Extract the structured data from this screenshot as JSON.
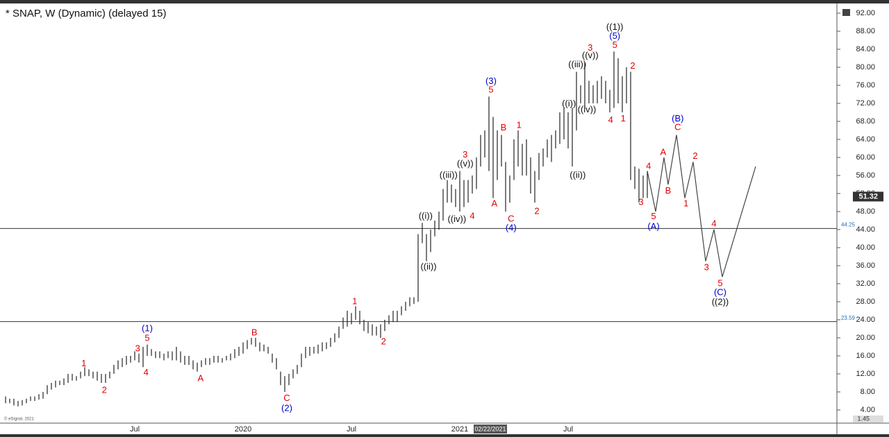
{
  "chart_data": {
    "type": "ohlc",
    "title": "* SNAP, W (Dynamic) (delayed 15)",
    "copyright": "© eSignal, 2021",
    "cursor_label": "02/22/2021",
    "bar_color": "#222222",
    "categories": [
      null,
      null,
      null,
      null,
      null,
      null,
      null,
      null,
      null,
      null,
      null,
      null,
      null,
      null,
      null,
      null,
      null,
      null,
      null,
      null,
      null,
      null,
      null,
      null,
      null,
      null,
      null,
      null,
      null,
      null,
      null,
      "Jul",
      null,
      null,
      null,
      null,
      null,
      null,
      null,
      null,
      null,
      null,
      null,
      null,
      null,
      null,
      null,
      null,
      null,
      null,
      null,
      null,
      null,
      null,
      null,
      null,
      null,
      "2020",
      null,
      null,
      null,
      null,
      null,
      null,
      null,
      null,
      null,
      null,
      null,
      null,
      null,
      null,
      null,
      null,
      null,
      null,
      null,
      null,
      null,
      null,
      null,
      null,
      null,
      "Jul",
      null,
      null,
      null,
      null,
      null,
      null,
      null,
      null,
      null,
      null,
      null,
      null,
      null,
      null,
      null,
      null,
      null,
      null,
      null,
      null,
      null,
      null,
      null,
      null,
      null,
      "2021",
      null,
      null,
      null,
      null,
      null,
      null,
      null,
      null,
      null,
      null,
      null,
      null,
      null,
      null,
      null,
      null,
      null,
      null,
      null,
      null,
      null,
      null,
      null,
      null,
      null,
      "Jul",
      null,
      null,
      null,
      null,
      null,
      null,
      null,
      null,
      null,
      null,
      null,
      null,
      null,
      null,
      null,
      null,
      null,
      null,
      null
    ],
    "high": [
      7,
      6.5,
      6.5,
      6,
      6.2,
      6.5,
      7,
      7,
      7.5,
      8,
      9.5,
      10,
      10.5,
      10.5,
      11,
      12,
      12,
      11.5,
      12.5,
      13.5,
      13,
      12.5,
      12.5,
      12,
      12,
      12.5,
      14,
      15,
      15.5,
      16,
      16,
      17,
      16.5,
      18,
      18.5,
      17.5,
      17,
      17,
      16.5,
      17,
      17,
      18,
      17,
      16,
      16,
      15,
      14.5,
      15,
      15.5,
      15.5,
      16,
      16,
      15.5,
      16,
      16.5,
      17.5,
      18,
      19,
      19.5,
      20,
      20,
      19,
      18.5,
      18,
      16.5,
      15.5,
      12.5,
      11.5,
      12,
      13,
      14,
      16.5,
      18,
      18,
      18,
      18.5,
      19,
      19,
      20,
      21,
      22.5,
      24.5,
      26,
      25.5,
      27,
      26,
      24,
      23.5,
      23,
      22.5,
      23,
      24,
      25,
      26,
      26,
      27,
      28,
      29,
      29,
      43,
      45.5,
      43,
      44,
      46,
      48,
      53,
      55,
      54,
      53,
      57,
      55,
      55,
      56,
      60,
      65,
      66,
      73.5,
      69,
      66,
      65,
      59,
      56,
      64,
      66,
      63,
      64,
      60,
      57,
      61,
      62,
      64,
      65,
      66,
      70,
      71,
      70,
      71,
      79,
      76,
      81,
      77,
      76,
      77,
      78,
      77,
      75,
      83.5,
      82,
      78,
      80,
      79,
      58,
      57.5,
      56,
      57
    ],
    "low": [
      5.5,
      5.5,
      5,
      4.8,
      5,
      5.5,
      6,
      6,
      6.3,
      6.5,
      7.5,
      8.5,
      9,
      9.5,
      9.5,
      10,
      10.5,
      10.5,
      11,
      11.5,
      11.5,
      11,
      10.5,
      10,
      10,
      11,
      12,
      13,
      13.5,
      14,
      14.5,
      15,
      14.5,
      13.5,
      16,
      16,
      15.5,
      15.5,
      15,
      15.5,
      15,
      15,
      14.5,
      14,
      14,
      13,
      12.5,
      13.5,
      14,
      14,
      14.5,
      14.5,
      14.5,
      15,
      15,
      15.5,
      16,
      16.5,
      17.5,
      18.5,
      18,
      17,
      17,
      16.5,
      14.5,
      13,
      9.5,
      8,
      9.5,
      11,
      12,
      13.5,
      15.5,
      16,
      16.5,
      16.5,
      17,
      17.5,
      18,
      19,
      20,
      22,
      22.5,
      23,
      24,
      23,
      21.5,
      21,
      20.5,
      20.5,
      20,
      21.5,
      23,
      23.5,
      23.5,
      25,
      26,
      27,
      27.5,
      28,
      41,
      37,
      39,
      42.5,
      44,
      46,
      50,
      50,
      49,
      48,
      49,
      50,
      52,
      53,
      58,
      60,
      57,
      51,
      55,
      58,
      48,
      50,
      55,
      58,
      56,
      56,
      52,
      50,
      55,
      58,
      60,
      59,
      62,
      63,
      64,
      62,
      58,
      66,
      72,
      71,
      72,
      72,
      72,
      73,
      72,
      70,
      71,
      72,
      70,
      72,
      55,
      53,
      50,
      51,
      51
    ],
    "projection": {
      "color": "#444444",
      "x": [
        154,
        156,
        158,
        159,
        161,
        163,
        165,
        168,
        170,
        172,
        180
      ],
      "values": [
        57,
        48,
        60,
        54,
        65,
        51,
        59,
        37,
        44,
        33.5,
        58
      ]
    },
    "ylim": [
      4,
      92
    ],
    "yticks": [
      {
        "value": 4,
        "label": "4.00"
      },
      {
        "value": 8,
        "label": "8.00"
      },
      {
        "value": 12,
        "label": "12.00"
      },
      {
        "value": 16,
        "label": "16.00"
      },
      {
        "value": 20,
        "label": "20.00"
      },
      {
        "value": 24,
        "label": "24.00"
      },
      {
        "value": 28,
        "label": "28.00"
      },
      {
        "value": 32,
        "label": "32.00"
      },
      {
        "value": 36,
        "label": "36.00"
      },
      {
        "value": 40,
        "label": "40.00"
      },
      {
        "value": 44,
        "label": "44.00"
      },
      {
        "value": 48,
        "label": "48.00"
      },
      {
        "value": 52,
        "label": "52.00"
      },
      {
        "value": 56,
        "label": "56.00"
      },
      {
        "value": 60,
        "label": "60.00"
      },
      {
        "value": 64,
        "label": "64.00"
      },
      {
        "value": 68,
        "label": "68.00"
      },
      {
        "value": 72,
        "label": "72.00"
      },
      {
        "value": 76,
        "label": "76.00"
      },
      {
        "value": 80,
        "label": "80.00"
      },
      {
        "value": 84,
        "label": "84.00"
      },
      {
        "value": 88,
        "label": "88.00"
      },
      {
        "value": 92,
        "label": "92.00"
      }
    ],
    "hlines": [
      {
        "value": 44.25,
        "label": "44.25"
      },
      {
        "value": 23.59,
        "label": "23.59"
      }
    ],
    "last_price": 51.32,
    "lower_axis_label": 1.45,
    "annotations": [
      {
        "text": "(1)",
        "color": "#0000cc",
        "x": 34,
        "y": 22
      },
      {
        "text": "5",
        "color": "#e00000",
        "x": 34,
        "y": 19.8
      },
      {
        "text": "3",
        "color": "#e00000",
        "x": 31.7,
        "y": 17.5
      },
      {
        "text": "4",
        "color": "#e00000",
        "x": 33.7,
        "y": 12.2
      },
      {
        "text": "1",
        "color": "#e00000",
        "x": 18.8,
        "y": 14.2
      },
      {
        "text": "2",
        "color": "#e00000",
        "x": 23.7,
        "y": 8.3
      },
      {
        "text": "A",
        "color": "#e00000",
        "x": 46.8,
        "y": 10.9
      },
      {
        "text": "B",
        "color": "#e00000",
        "x": 59.7,
        "y": 21.1
      },
      {
        "text": "C",
        "color": "#e00000",
        "x": 67.5,
        "y": 6.5
      },
      {
        "text": "(2)",
        "color": "#0000cc",
        "x": 67.5,
        "y": 4.3
      },
      {
        "text": "1",
        "color": "#e00000",
        "x": 83.8,
        "y": 28
      },
      {
        "text": "2",
        "color": "#e00000",
        "x": 90.7,
        "y": 19.1
      },
      {
        "text": "((i))",
        "color": "#111111",
        "x": 100.8,
        "y": 46.9
      },
      {
        "text": "((ii))",
        "color": "#111111",
        "x": 101.5,
        "y": 35.7
      },
      {
        "text": "((iii))",
        "color": "#111111",
        "x": 106.3,
        "y": 56
      },
      {
        "text": "((iv))",
        "color": "#111111",
        "x": 108.3,
        "y": 46.2
      },
      {
        "text": "((v))",
        "color": "#111111",
        "x": 110.3,
        "y": 58.5
      },
      {
        "text": "3",
        "color": "#e00000",
        "x": 110.3,
        "y": 60.5
      },
      {
        "text": "4",
        "color": "#e00000",
        "x": 112,
        "y": 46.9
      },
      {
        "text": "(3)",
        "color": "#0000cc",
        "x": 116.5,
        "y": 76.8
      },
      {
        "text": "5",
        "color": "#e00000",
        "x": 116.5,
        "y": 74.9
      },
      {
        "text": "A",
        "color": "#e00000",
        "x": 117.3,
        "y": 49.7
      },
      {
        "text": "B",
        "color": "#e00000",
        "x": 119.5,
        "y": 66.5
      },
      {
        "text": "C",
        "color": "#e00000",
        "x": 121.3,
        "y": 46.3
      },
      {
        "text": "(4)",
        "color": "#0000cc",
        "x": 121.3,
        "y": 44.3
      },
      {
        "text": "1",
        "color": "#e00000",
        "x": 123.2,
        "y": 67.1
      },
      {
        "text": "2",
        "color": "#e00000",
        "x": 127.5,
        "y": 48
      },
      {
        "text": "((i))",
        "color": "#111111",
        "x": 135.2,
        "y": 71.8
      },
      {
        "text": "((ii))",
        "color": "#111111",
        "x": 137.3,
        "y": 56
      },
      {
        "text": "((iii))",
        "color": "#111111",
        "x": 137.2,
        "y": 80.5
      },
      {
        "text": "((iv))",
        "color": "#111111",
        "x": 139.5,
        "y": 70.5
      },
      {
        "text": "((v))",
        "color": "#111111",
        "x": 140.3,
        "y": 82.5
      },
      {
        "text": "3",
        "color": "#e00000",
        "x": 140.3,
        "y": 84.2
      },
      {
        "text": "4",
        "color": "#e00000",
        "x": 145.2,
        "y": 68.2
      },
      {
        "text": "((1))",
        "color": "#111111",
        "x": 146.2,
        "y": 88.8
      },
      {
        "text": "(5)",
        "color": "#0000cc",
        "x": 146.2,
        "y": 86.8
      },
      {
        "text": "5",
        "color": "#e00000",
        "x": 146.2,
        "y": 84.8
      },
      {
        "text": "1",
        "color": "#e00000",
        "x": 148.2,
        "y": 68.5
      },
      {
        "text": "2",
        "color": "#e00000",
        "x": 150.5,
        "y": 80.2
      },
      {
        "text": "3",
        "color": "#e00000",
        "x": 152.5,
        "y": 50
      },
      {
        "text": "4",
        "color": "#e00000",
        "x": 154.3,
        "y": 58
      },
      {
        "text": "5",
        "color": "#e00000",
        "x": 155.5,
        "y": 46.8
      },
      {
        "text": "(A)",
        "color": "#0000cc",
        "x": 155.5,
        "y": 44.6
      },
      {
        "text": "A",
        "color": "#e00000",
        "x": 157.8,
        "y": 61.1
      },
      {
        "text": "B",
        "color": "#e00000",
        "x": 159,
        "y": 52.5
      },
      {
        "text": "(B)",
        "color": "#0000cc",
        "x": 161.3,
        "y": 68.5
      },
      {
        "text": "C",
        "color": "#e00000",
        "x": 161.3,
        "y": 66.6
      },
      {
        "text": "1",
        "color": "#e00000",
        "x": 163.3,
        "y": 49.7
      },
      {
        "text": "2",
        "color": "#e00000",
        "x": 165.5,
        "y": 60.2
      },
      {
        "text": "3",
        "color": "#e00000",
        "x": 168.2,
        "y": 35.5
      },
      {
        "text": "4",
        "color": "#e00000",
        "x": 170,
        "y": 45.2
      },
      {
        "text": "5",
        "color": "#e00000",
        "x": 171.5,
        "y": 32
      },
      {
        "text": "(C)",
        "color": "#0000cc",
        "x": 171.5,
        "y": 30
      },
      {
        "text": "((2))",
        "color": "#111111",
        "x": 171.5,
        "y": 27.8
      }
    ]
  }
}
